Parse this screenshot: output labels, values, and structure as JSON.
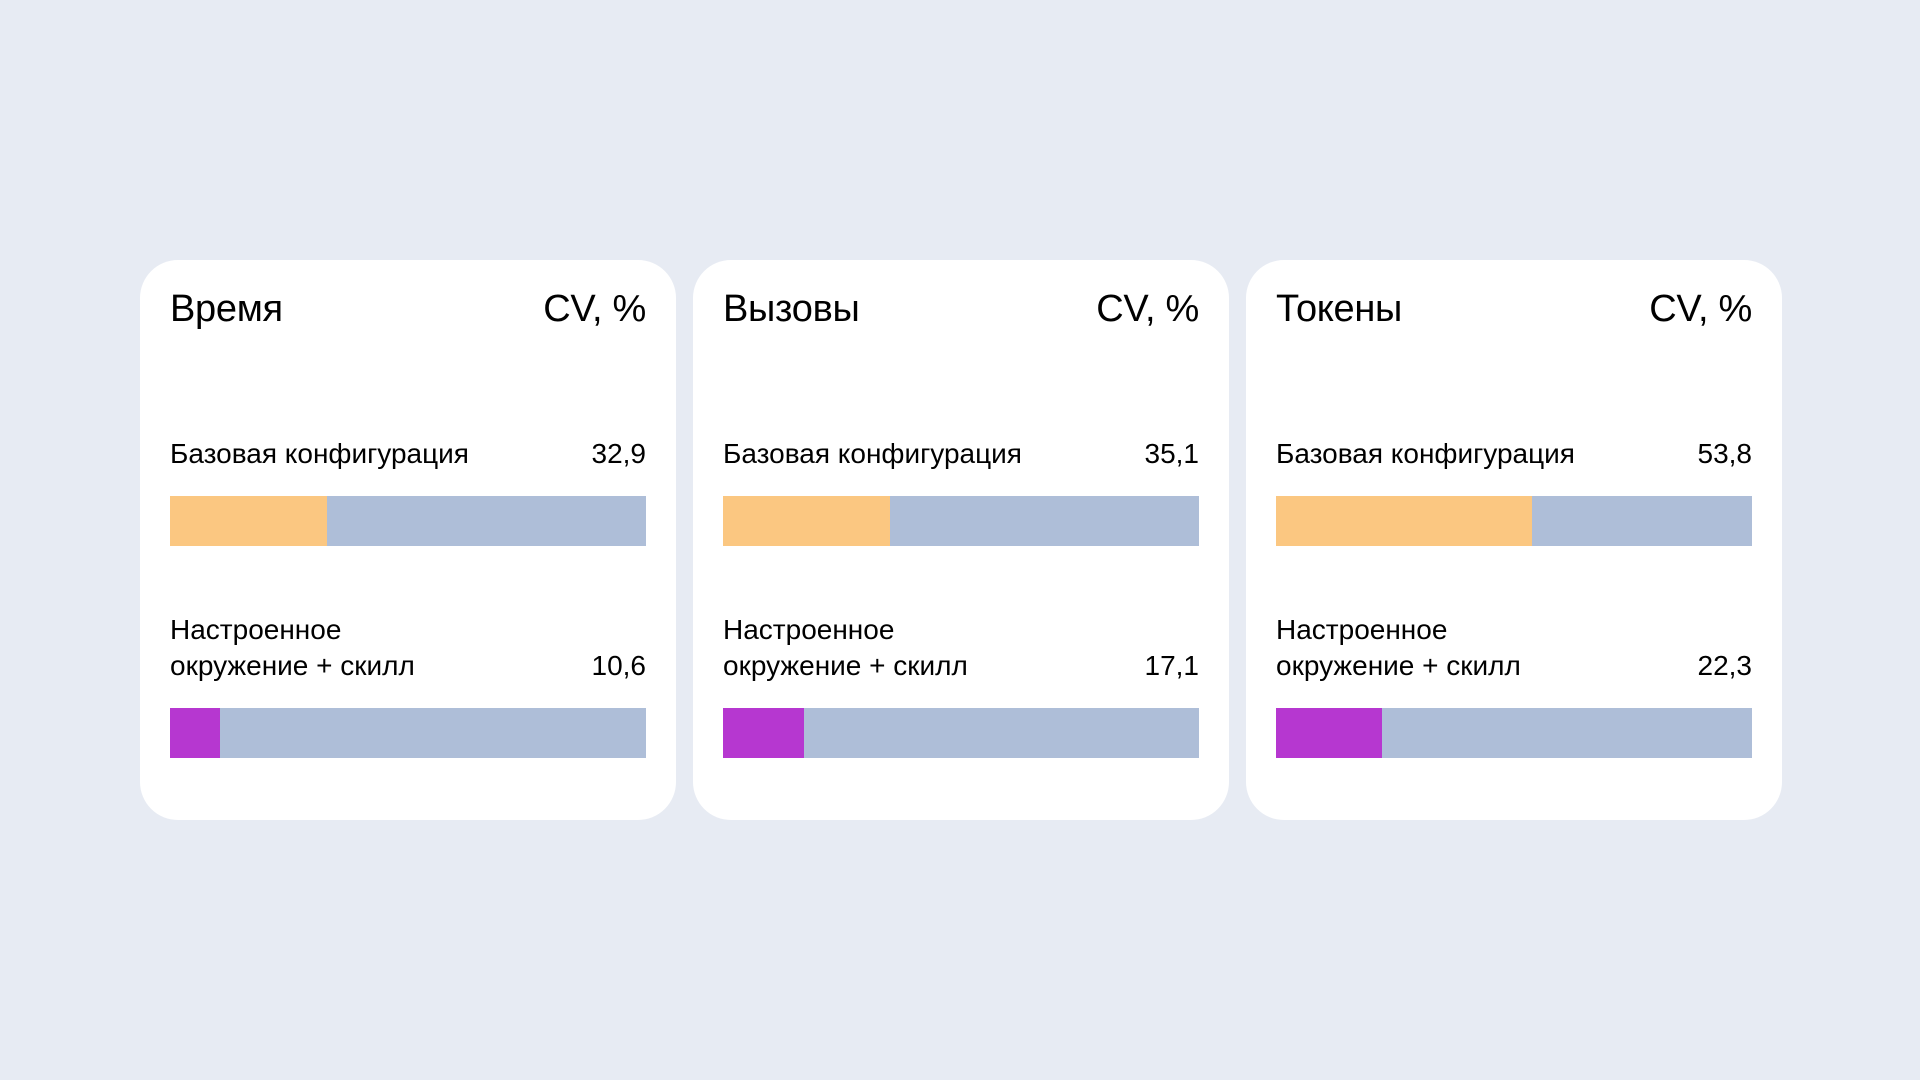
{
  "colors": {
    "background": "#e7ebf3",
    "card": "#ffffff",
    "track": "#aebed8",
    "base": "#fbc781",
    "tuned": "#b637d0"
  },
  "cards": [
    {
      "title": "Время",
      "unit": "CV, %",
      "base": {
        "label": "Базовая конфигурация",
        "value_text": "32,9"
      },
      "tuned": {
        "label": "Настроенное окружение + скилл",
        "value_text": "10,6"
      }
    },
    {
      "title": "Вызовы",
      "unit": "CV, %",
      "base": {
        "label": "Базовая конфигурация",
        "value_text": "35,1"
      },
      "tuned": {
        "label": "Настроенное окружение + скилл",
        "value_text": "17,1"
      }
    },
    {
      "title": "Токены",
      "unit": "CV, %",
      "base": {
        "label": "Базовая конфигурация",
        "value_text": "53,8"
      },
      "tuned": {
        "label": "Настроенное окружение + скилл",
        "value_text": "22,3"
      }
    }
  ],
  "chart_data": [
    {
      "type": "bar",
      "title": "Время",
      "ylabel": "CV, %",
      "categories": [
        "Базовая конфигурация",
        "Настроенное окружение + скилл"
      ],
      "values": [
        32.9,
        10.6
      ],
      "ylim": [
        0,
        100
      ],
      "colors": [
        "#fbc781",
        "#b637d0"
      ]
    },
    {
      "type": "bar",
      "title": "Вызовы",
      "ylabel": "CV, %",
      "categories": [
        "Базовая конфигурация",
        "Настроенное окружение + скилл"
      ],
      "values": [
        35.1,
        17.1
      ],
      "ylim": [
        0,
        100
      ],
      "colors": [
        "#fbc781",
        "#b637d0"
      ]
    },
    {
      "type": "bar",
      "title": "Токены",
      "ylabel": "CV, %",
      "categories": [
        "Базовая конфигурация",
        "Настроенное окружение + скилл"
      ],
      "values": [
        53.8,
        22.3
      ],
      "ylim": [
        0,
        100
      ],
      "colors": [
        "#fbc781",
        "#b637d0"
      ]
    }
  ]
}
